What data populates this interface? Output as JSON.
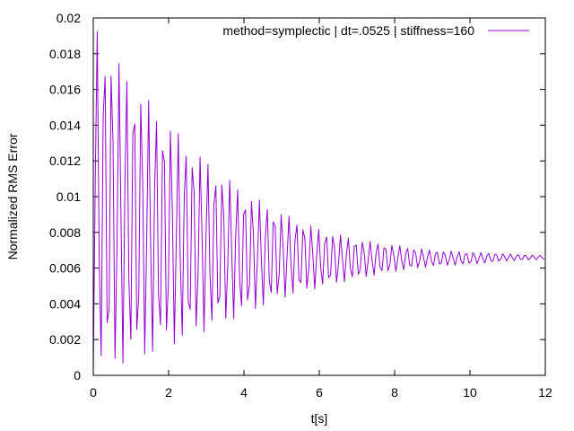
{
  "chart_data": {
    "type": "line",
    "title": "",
    "xlabel": "t[s]",
    "ylabel": "Normalized RMS Error",
    "xlim": [
      0,
      12
    ],
    "ylim": [
      0,
      0.02
    ],
    "x_ticks": [
      "0",
      "2",
      "4",
      "6",
      "8",
      "10",
      "12"
    ],
    "y_ticks": [
      "0",
      "0.002",
      "0.004",
      "0.006",
      "0.008",
      "0.01",
      "0.012",
      "0.014",
      "0.016",
      "0.018",
      "0.02"
    ],
    "grid": false,
    "legend_position": "top-right",
    "series": [
      {
        "name": "method=symplectic | dt=.0525 | stiffness=160",
        "color": "#9400d3",
        "sample_step": 0.0525,
        "oscillation_period": 0.196,
        "steady_value": 0.0066,
        "peaks": [
          {
            "t": 0.1,
            "max": 0.0195,
            "min": 0.0001
          },
          {
            "t": 0.3,
            "max": 0.0188,
            "min": 0.0002
          },
          {
            "t": 0.5,
            "max": 0.018,
            "min": 0.0004
          },
          {
            "t": 1.0,
            "max": 0.0166,
            "min": 0.0008
          },
          {
            "t": 1.5,
            "max": 0.0153,
            "min": 0.0011
          },
          {
            "t": 2.0,
            "max": 0.0141,
            "min": 0.0016
          },
          {
            "t": 3.0,
            "max": 0.012,
            "min": 0.0025
          },
          {
            "t": 4.0,
            "max": 0.0103,
            "min": 0.0034
          },
          {
            "t": 5.0,
            "max": 0.0091,
            "min": 0.0043
          },
          {
            "t": 6.0,
            "max": 0.0082,
            "min": 0.0049
          },
          {
            "t": 7.0,
            "max": 0.0076,
            "min": 0.0054
          },
          {
            "t": 8.0,
            "max": 0.0073,
            "min": 0.0058
          },
          {
            "t": 9.0,
            "max": 0.007,
            "min": 0.0061
          },
          {
            "t": 10.0,
            "max": 0.0069,
            "min": 0.0062
          },
          {
            "t": 11.0,
            "max": 0.0068,
            "min": 0.0064
          },
          {
            "t": 12.0,
            "max": 0.0067,
            "min": 0.0065
          }
        ]
      }
    ]
  }
}
